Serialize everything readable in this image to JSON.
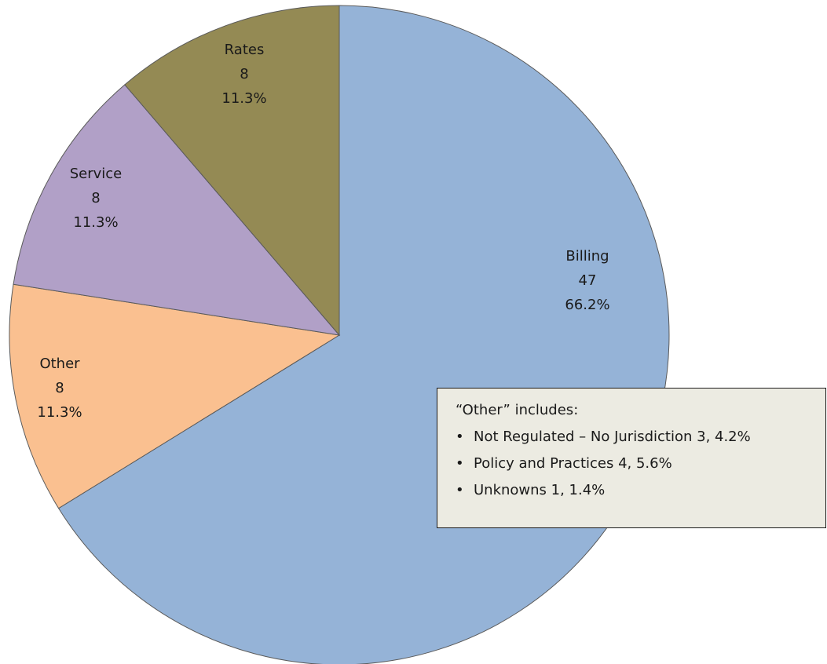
{
  "chart_data": {
    "type": "pie",
    "start": "12 o'clock",
    "direction": "clockwise",
    "slices": [
      {
        "name": "Billing",
        "value": 47,
        "percent": "66.2%",
        "color": "#95b3d7"
      },
      {
        "name": "Other",
        "value": 8,
        "percent": "11.3%",
        "color": "#fac090"
      },
      {
        "name": "Service",
        "value": 8,
        "percent": "11.3%",
        "color": "#b1a0c7"
      },
      {
        "name": "Rates",
        "value": 8,
        "percent": "11.3%",
        "color": "#948a54"
      }
    ],
    "stroke_color": "#5a5a5a"
  },
  "note": {
    "title": "“Other” includes:",
    "bullet": "•",
    "items": [
      "Not Regulated – No Jurisdiction 3, 4.2%",
      "Policy and Practices 4, 5.6%",
      "Unknowns 1, 1.4%"
    ],
    "background": "#ecebe2"
  }
}
